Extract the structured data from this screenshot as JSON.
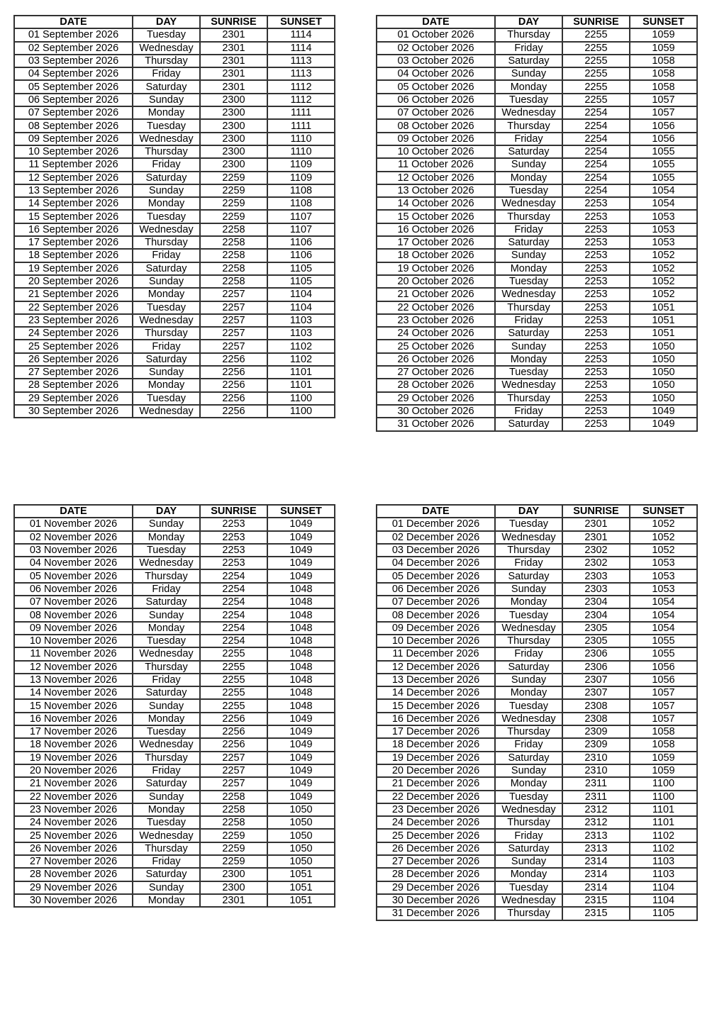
{
  "headers": [
    "DATE",
    "DAY",
    "SUNRISE",
    "SUNSET"
  ],
  "tables": [
    {
      "rows": [
        [
          "01 September 2026",
          "Tuesday",
          "2301",
          "1114"
        ],
        [
          "02 September 2026",
          "Wednesday",
          "2301",
          "1114"
        ],
        [
          "03 September 2026",
          "Thursday",
          "2301",
          "1113"
        ],
        [
          "04 September 2026",
          "Friday",
          "2301",
          "1113"
        ],
        [
          "05 September 2026",
          "Saturday",
          "2301",
          "1112"
        ],
        [
          "06 September 2026",
          "Sunday",
          "2300",
          "1112"
        ],
        [
          "07 September 2026",
          "Monday",
          "2300",
          "1111"
        ],
        [
          "08 September 2026",
          "Tuesday",
          "2300",
          "1111"
        ],
        [
          "09 September 2026",
          "Wednesday",
          "2300",
          "1110"
        ],
        [
          "10 September 2026",
          "Thursday",
          "2300",
          "1110"
        ],
        [
          "11 September 2026",
          "Friday",
          "2300",
          "1109"
        ],
        [
          "12 September 2026",
          "Saturday",
          "2259",
          "1109"
        ],
        [
          "13 September 2026",
          "Sunday",
          "2259",
          "1108"
        ],
        [
          "14 September 2026",
          "Monday",
          "2259",
          "1108"
        ],
        [
          "15 September 2026",
          "Tuesday",
          "2259",
          "1107"
        ],
        [
          "16 September 2026",
          "Wednesday",
          "2258",
          "1107"
        ],
        [
          "17 September 2026",
          "Thursday",
          "2258",
          "1106"
        ],
        [
          "18 September 2026",
          "Friday",
          "2258",
          "1106"
        ],
        [
          "19 September 2026",
          "Saturday",
          "2258",
          "1105"
        ],
        [
          "20 September 2026",
          "Sunday",
          "2258",
          "1105"
        ],
        [
          "21 September 2026",
          "Monday",
          "2257",
          "1104"
        ],
        [
          "22 September 2026",
          "Tuesday",
          "2257",
          "1104"
        ],
        [
          "23 September 2026",
          "Wednesday",
          "2257",
          "1103"
        ],
        [
          "24 September 2026",
          "Thursday",
          "2257",
          "1103"
        ],
        [
          "25 September 2026",
          "Friday",
          "2257",
          "1102"
        ],
        [
          "26 September 2026",
          "Saturday",
          "2256",
          "1102"
        ],
        [
          "27 September 2026",
          "Sunday",
          "2256",
          "1101"
        ],
        [
          "28 September 2026",
          "Monday",
          "2256",
          "1101"
        ],
        [
          "29 September 2026",
          "Tuesday",
          "2256",
          "1100"
        ],
        [
          "30 September 2026",
          "Wednesday",
          "2256",
          "1100"
        ]
      ]
    },
    {
      "rows": [
        [
          "01 October 2026",
          "Thursday",
          "2255",
          "1059"
        ],
        [
          "02 October 2026",
          "Friday",
          "2255",
          "1059"
        ],
        [
          "03 October 2026",
          "Saturday",
          "2255",
          "1058"
        ],
        [
          "04 October 2026",
          "Sunday",
          "2255",
          "1058"
        ],
        [
          "05 October 2026",
          "Monday",
          "2255",
          "1058"
        ],
        [
          "06 October 2026",
          "Tuesday",
          "2255",
          "1057"
        ],
        [
          "07 October 2026",
          "Wednesday",
          "2254",
          "1057"
        ],
        [
          "08 October 2026",
          "Thursday",
          "2254",
          "1056"
        ],
        [
          "09 October 2026",
          "Friday",
          "2254",
          "1056"
        ],
        [
          "10 October 2026",
          "Saturday",
          "2254",
          "1055"
        ],
        [
          "11 October 2026",
          "Sunday",
          "2254",
          "1055"
        ],
        [
          "12 October 2026",
          "Monday",
          "2254",
          "1055"
        ],
        [
          "13 October 2026",
          "Tuesday",
          "2254",
          "1054"
        ],
        [
          "14 October 2026",
          "Wednesday",
          "2253",
          "1054"
        ],
        [
          "15 October 2026",
          "Thursday",
          "2253",
          "1053"
        ],
        [
          "16 October 2026",
          "Friday",
          "2253",
          "1053"
        ],
        [
          "17 October 2026",
          "Saturday",
          "2253",
          "1053"
        ],
        [
          "18 October 2026",
          "Sunday",
          "2253",
          "1052"
        ],
        [
          "19 October 2026",
          "Monday",
          "2253",
          "1052"
        ],
        [
          "20 October 2026",
          "Tuesday",
          "2253",
          "1052"
        ],
        [
          "21 October 2026",
          "Wednesday",
          "2253",
          "1052"
        ],
        [
          "22 October 2026",
          "Thursday",
          "2253",
          "1051"
        ],
        [
          "23 October 2026",
          "Friday",
          "2253",
          "1051"
        ],
        [
          "24 October 2026",
          "Saturday",
          "2253",
          "1051"
        ],
        [
          "25 October 2026",
          "Sunday",
          "2253",
          "1050"
        ],
        [
          "26 October 2026",
          "Monday",
          "2253",
          "1050"
        ],
        [
          "27 October 2026",
          "Tuesday",
          "2253",
          "1050"
        ],
        [
          "28 October 2026",
          "Wednesday",
          "2253",
          "1050"
        ],
        [
          "29 October 2026",
          "Thursday",
          "2253",
          "1050"
        ],
        [
          "30 October 2026",
          "Friday",
          "2253",
          "1049"
        ],
        [
          "31 October 2026",
          "Saturday",
          "2253",
          "1049"
        ]
      ]
    },
    {
      "rows": [
        [
          "01 November 2026",
          "Sunday",
          "2253",
          "1049"
        ],
        [
          "02 November 2026",
          "Monday",
          "2253",
          "1049"
        ],
        [
          "03 November 2026",
          "Tuesday",
          "2253",
          "1049"
        ],
        [
          "04 November 2026",
          "Wednesday",
          "2253",
          "1049"
        ],
        [
          "05 November 2026",
          "Thursday",
          "2254",
          "1049"
        ],
        [
          "06 November 2026",
          "Friday",
          "2254",
          "1048"
        ],
        [
          "07 November 2026",
          "Saturday",
          "2254",
          "1048"
        ],
        [
          "08 November 2026",
          "Sunday",
          "2254",
          "1048"
        ],
        [
          "09 November 2026",
          "Monday",
          "2254",
          "1048"
        ],
        [
          "10 November 2026",
          "Tuesday",
          "2254",
          "1048"
        ],
        [
          "11 November 2026",
          "Wednesday",
          "2255",
          "1048"
        ],
        [
          "12 November 2026",
          "Thursday",
          "2255",
          "1048"
        ],
        [
          "13 November 2026",
          "Friday",
          "2255",
          "1048"
        ],
        [
          "14 November 2026",
          "Saturday",
          "2255",
          "1048"
        ],
        [
          "15 November 2026",
          "Sunday",
          "2255",
          "1048"
        ],
        [
          "16 November 2026",
          "Monday",
          "2256",
          "1049"
        ],
        [
          "17 November 2026",
          "Tuesday",
          "2256",
          "1049"
        ],
        [
          "18 November 2026",
          "Wednesday",
          "2256",
          "1049"
        ],
        [
          "19 November 2026",
          "Thursday",
          "2257",
          "1049"
        ],
        [
          "20 November 2026",
          "Friday",
          "2257",
          "1049"
        ],
        [
          "21 November 2026",
          "Saturday",
          "2257",
          "1049"
        ],
        [
          "22 November 2026",
          "Sunday",
          "2258",
          "1049"
        ],
        [
          "23 November 2026",
          "Monday",
          "2258",
          "1050"
        ],
        [
          "24 November 2026",
          "Tuesday",
          "2258",
          "1050"
        ],
        [
          "25 November 2026",
          "Wednesday",
          "2259",
          "1050"
        ],
        [
          "26 November 2026",
          "Thursday",
          "2259",
          "1050"
        ],
        [
          "27 November 2026",
          "Friday",
          "2259",
          "1050"
        ],
        [
          "28 November 2026",
          "Saturday",
          "2300",
          "1051"
        ],
        [
          "29 November 2026",
          "Sunday",
          "2300",
          "1051"
        ],
        [
          "30 November 2026",
          "Monday",
          "2301",
          "1051"
        ]
      ]
    },
    {
      "rows": [
        [
          "01 December 2026",
          "Tuesday",
          "2301",
          "1052"
        ],
        [
          "02 December 2026",
          "Wednesday",
          "2301",
          "1052"
        ],
        [
          "03 December 2026",
          "Thursday",
          "2302",
          "1052"
        ],
        [
          "04 December 2026",
          "Friday",
          "2302",
          "1053"
        ],
        [
          "05 December 2026",
          "Saturday",
          "2303",
          "1053"
        ],
        [
          "06 December 2026",
          "Sunday",
          "2303",
          "1053"
        ],
        [
          "07 December 2026",
          "Monday",
          "2304",
          "1054"
        ],
        [
          "08 December 2026",
          "Tuesday",
          "2304",
          "1054"
        ],
        [
          "09 December 2026",
          "Wednesday",
          "2305",
          "1054"
        ],
        [
          "10 December 2026",
          "Thursday",
          "2305",
          "1055"
        ],
        [
          "11 December 2026",
          "Friday",
          "2306",
          "1055"
        ],
        [
          "12 December 2026",
          "Saturday",
          "2306",
          "1056"
        ],
        [
          "13 December 2026",
          "Sunday",
          "2307",
          "1056"
        ],
        [
          "14 December 2026",
          "Monday",
          "2307",
          "1057"
        ],
        [
          "15 December 2026",
          "Tuesday",
          "2308",
          "1057"
        ],
        [
          "16 December 2026",
          "Wednesday",
          "2308",
          "1057"
        ],
        [
          "17 December 2026",
          "Thursday",
          "2309",
          "1058"
        ],
        [
          "18 December 2026",
          "Friday",
          "2309",
          "1058"
        ],
        [
          "19 December 2026",
          "Saturday",
          "2310",
          "1059"
        ],
        [
          "20 December 2026",
          "Sunday",
          "2310",
          "1059"
        ],
        [
          "21 December 2026",
          "Monday",
          "2311",
          "1100"
        ],
        [
          "22 December 2026",
          "Tuesday",
          "2311",
          "1100"
        ],
        [
          "23 December 2026",
          "Wednesday",
          "2312",
          "1101"
        ],
        [
          "24 December 2026",
          "Thursday",
          "2312",
          "1101"
        ],
        [
          "25 December 2026",
          "Friday",
          "2313",
          "1102"
        ],
        [
          "26 December 2026",
          "Saturday",
          "2313",
          "1102"
        ],
        [
          "27 December 2026",
          "Sunday",
          "2314",
          "1103"
        ],
        [
          "28 December 2026",
          "Monday",
          "2314",
          "1103"
        ],
        [
          "29 December 2026",
          "Tuesday",
          "2314",
          "1104"
        ],
        [
          "30 December 2026",
          "Wednesday",
          "2315",
          "1104"
        ],
        [
          "31 December 2026",
          "Thursday",
          "2315",
          "1105"
        ]
      ]
    }
  ]
}
